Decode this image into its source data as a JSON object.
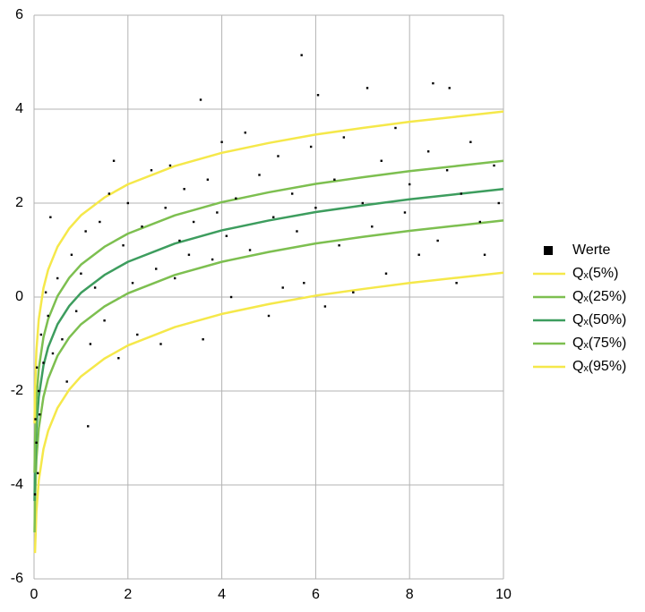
{
  "chart_data": {
    "type": "scatter",
    "xlim": [
      0,
      10
    ],
    "ylim": [
      -6,
      6
    ],
    "xticks": [
      0,
      2,
      4,
      6,
      8,
      10
    ],
    "yticks": [
      -6,
      -4,
      -2,
      0,
      2,
      4,
      6
    ],
    "grid": true,
    "legend": "right",
    "series": [
      {
        "name": "Werte",
        "type": "scatter",
        "color": "#000000",
        "x": [
          0.02,
          0.03,
          0.05,
          0.06,
          0.08,
          0.1,
          0.12,
          0.15,
          0.2,
          0.25,
          0.3,
          0.35,
          0.4,
          0.5,
          0.6,
          0.7,
          0.8,
          0.9,
          1.0,
          1.1,
          1.15,
          1.2,
          1.3,
          1.4,
          1.5,
          1.6,
          1.7,
          1.8,
          1.9,
          2.0,
          2.1,
          2.2,
          2.3,
          2.5,
          2.6,
          2.7,
          2.8,
          2.9,
          3.0,
          3.1,
          3.2,
          3.3,
          3.4,
          3.55,
          3.6,
          3.7,
          3.8,
          3.9,
          4.0,
          4.1,
          4.2,
          4.3,
          4.5,
          4.6,
          4.8,
          5.0,
          5.1,
          5.2,
          5.3,
          5.5,
          5.6,
          5.7,
          5.75,
          5.9,
          6.0,
          6.05,
          6.2,
          6.4,
          6.5,
          6.6,
          6.8,
          7.0,
          7.1,
          7.2,
          7.4,
          7.5,
          7.7,
          7.9,
          8.0,
          8.2,
          8.4,
          8.5,
          8.6,
          8.8,
          8.85,
          9.0,
          9.1,
          9.3,
          9.5,
          9.6,
          9.8,
          9.9
        ],
        "values": [
          -4.2,
          -2.6,
          -3.1,
          -1.5,
          -3.75,
          -2.0,
          -2.5,
          -0.8,
          -1.4,
          0.1,
          -0.4,
          1.7,
          -1.2,
          0.4,
          -0.9,
          -1.8,
          0.9,
          -0.3,
          0.5,
          1.4,
          -2.75,
          -1.0,
          0.2,
          1.6,
          -0.5,
          2.2,
          2.9,
          -1.3,
          1.1,
          2.0,
          0.3,
          -0.8,
          1.5,
          2.7,
          0.6,
          -1.0,
          1.9,
          2.8,
          0.4,
          1.2,
          2.3,
          0.9,
          1.6,
          4.2,
          -0.9,
          2.5,
          0.8,
          1.8,
          3.3,
          1.3,
          0.0,
          2.1,
          3.5,
          1.0,
          2.6,
          -0.4,
          1.7,
          3.0,
          0.2,
          2.2,
          1.4,
          5.15,
          0.3,
          3.2,
          1.9,
          4.3,
          -0.2,
          2.5,
          1.1,
          3.4,
          0.1,
          2.0,
          4.45,
          1.5,
          2.9,
          0.5,
          3.6,
          1.8,
          2.4,
          0.9,
          3.1,
          4.55,
          1.2,
          2.7,
          4.45,
          0.3,
          2.2,
          3.3,
          1.6,
          0.9,
          2.8,
          2.0
        ]
      },
      {
        "name": "Qₓ(5%)",
        "type": "line",
        "color": "#f5e84a",
        "x": [
          0.01,
          0.02,
          0.05,
          0.1,
          0.2,
          0.3,
          0.5,
          0.75,
          1,
          1.5,
          2,
          3,
          4,
          5,
          6,
          7,
          8,
          9,
          10
        ],
        "values": [
          null,
          -5.45,
          -4.57,
          -3.91,
          -3.24,
          -2.85,
          -2.36,
          -1.97,
          -1.69,
          -1.31,
          -1.03,
          -0.64,
          -0.36,
          -0.15,
          0.03,
          0.17,
          0.3,
          0.41,
          0.52
        ]
      },
      {
        "name": "Qₓ(25%)",
        "type": "line",
        "color": "#7dbf50",
        "x": [
          0.01,
          0.02,
          0.05,
          0.1,
          0.2,
          0.3,
          0.5,
          0.75,
          1,
          1.5,
          2,
          3,
          4,
          5,
          6,
          7,
          8,
          9,
          10
        ],
        "values": [
          -5.01,
          -4.34,
          -3.46,
          -2.8,
          -2.13,
          -1.74,
          -1.25,
          -0.86,
          -0.58,
          -0.2,
          0.08,
          0.47,
          0.75,
          0.96,
          1.14,
          1.28,
          1.41,
          1.52,
          1.63
        ]
      },
      {
        "name": "Qₓ(50%)",
        "type": "line",
        "color": "#3d9d5e",
        "x": [
          0.01,
          0.02,
          0.05,
          0.1,
          0.2,
          0.3,
          0.5,
          0.75,
          1,
          1.5,
          2,
          3,
          4,
          5,
          6,
          7,
          8,
          9,
          10
        ],
        "values": [
          -4.34,
          -3.67,
          -2.79,
          -2.13,
          -1.46,
          -1.07,
          -0.58,
          -0.19,
          0.09,
          0.47,
          0.75,
          1.14,
          1.42,
          1.63,
          1.81,
          1.95,
          2.08,
          2.19,
          2.3
        ]
      },
      {
        "name": "Qₓ(75%)",
        "type": "line",
        "color": "#7dbf50",
        "x": [
          0.01,
          0.02,
          0.05,
          0.1,
          0.2,
          0.3,
          0.5,
          0.75,
          1,
          1.5,
          2,
          3,
          4,
          5,
          6,
          7,
          8,
          9,
          10
        ],
        "values": [
          -3.74,
          -3.07,
          -2.19,
          -1.53,
          -0.86,
          -0.47,
          0.02,
          0.41,
          0.69,
          1.07,
          1.35,
          1.74,
          2.02,
          2.23,
          2.41,
          2.55,
          2.68,
          2.79,
          2.9
        ]
      },
      {
        "name": "Qₓ(95%)",
        "type": "line",
        "color": "#f5e84a",
        "x": [
          0.01,
          0.02,
          0.05,
          0.1,
          0.2,
          0.3,
          0.5,
          0.75,
          1,
          1.5,
          2,
          3,
          4,
          5,
          6,
          7,
          8,
          9,
          10
        ],
        "values": [
          -2.69,
          -2.02,
          -1.14,
          -0.48,
          0.19,
          0.58,
          1.07,
          1.46,
          1.74,
          2.12,
          2.4,
          2.79,
          3.07,
          3.28,
          3.46,
          3.6,
          3.73,
          3.84,
          3.95
        ]
      }
    ]
  }
}
